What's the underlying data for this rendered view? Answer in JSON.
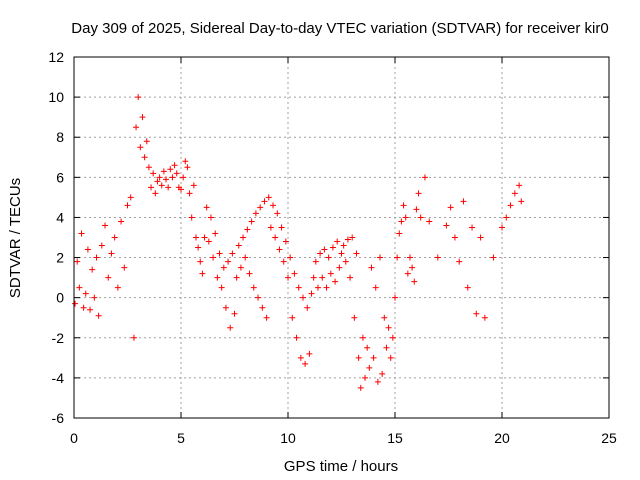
{
  "chart_data": {
    "type": "scatter",
    "title": "Day 309 of 2025, Sidereal Day-to-day VTEC variation (SDTVAR) for receiver kir0",
    "xlabel": "GPS time / hours",
    "ylabel": "SDTVAR / TECUs",
    "xlim": [
      0,
      25
    ],
    "ylim": [
      -6,
      12
    ],
    "xticks": [
      "0",
      "5",
      "10",
      "15",
      "20",
      "25"
    ],
    "yticks": [
      "-6",
      "-4",
      "-2",
      "0",
      "2",
      "4",
      "6",
      "8",
      "10",
      "12"
    ],
    "grid": true,
    "marker": "+",
    "color": "#ff0000",
    "series": [
      {
        "name": "SDTVAR",
        "x": [
          0.05,
          0.15,
          0.25,
          0.35,
          0.45,
          0.55,
          0.65,
          0.75,
          0.85,
          0.95,
          1.05,
          1.15,
          1.3,
          1.45,
          1.6,
          1.75,
          1.9,
          2.05,
          2.2,
          2.35,
          2.5,
          2.65,
          2.8,
          2.9,
          3.0,
          3.1,
          3.2,
          3.3,
          3.4,
          3.5,
          3.6,
          3.7,
          3.8,
          3.9,
          4.0,
          4.1,
          4.2,
          4.3,
          4.4,
          4.5,
          4.6,
          4.7,
          4.8,
          4.9,
          5.0,
          5.1,
          5.2,
          5.3,
          5.4,
          5.5,
          5.6,
          5.7,
          5.8,
          5.9,
          6.0,
          6.1,
          6.2,
          6.3,
          6.4,
          6.5,
          6.6,
          6.7,
          6.8,
          6.9,
          7.0,
          7.1,
          7.2,
          7.3,
          7.4,
          7.5,
          7.6,
          7.7,
          7.8,
          7.9,
          8.0,
          8.1,
          8.2,
          8.3,
          8.4,
          8.5,
          8.6,
          8.7,
          8.8,
          8.9,
          9.0,
          9.1,
          9.2,
          9.3,
          9.4,
          9.5,
          9.6,
          9.7,
          9.8,
          9.9,
          10.0,
          10.1,
          10.2,
          10.3,
          10.4,
          10.5,
          10.6,
          10.7,
          10.8,
          10.9,
          11.0,
          11.1,
          11.2,
          11.3,
          11.4,
          11.5,
          11.6,
          11.7,
          11.8,
          11.9,
          12.0,
          12.1,
          12.2,
          12.3,
          12.4,
          12.5,
          12.6,
          12.7,
          12.8,
          12.9,
          13.0,
          13.1,
          13.2,
          13.3,
          13.4,
          13.5,
          13.6,
          13.7,
          13.8,
          13.9,
          14.0,
          14.1,
          14.2,
          14.3,
          14.4,
          14.5,
          14.6,
          14.7,
          14.8,
          14.9,
          15.0,
          15.1,
          15.2,
          15.3,
          15.4,
          15.5,
          15.6,
          15.7,
          15.8,
          15.9,
          16.0,
          16.1,
          16.2,
          16.4,
          16.6,
          17.0,
          17.4,
          17.6,
          17.8,
          18.0,
          18.2,
          18.4,
          18.6,
          18.8,
          19.0,
          19.2,
          19.6,
          20.0,
          20.2,
          20.4,
          20.6,
          20.8,
          20.9
        ],
        "y": [
          -0.3,
          1.8,
          0.5,
          3.2,
          -0.5,
          0.2,
          2.4,
          -0.6,
          1.4,
          0.0,
          2.0,
          -0.9,
          2.6,
          3.6,
          1.0,
          2.2,
          3.0,
          0.5,
          3.8,
          1.5,
          4.6,
          5.0,
          -2.0,
          8.5,
          10.0,
          7.5,
          9.0,
          7.0,
          7.8,
          6.5,
          5.5,
          6.2,
          5.2,
          5.8,
          6.0,
          5.6,
          6.3,
          5.9,
          5.5,
          6.4,
          6.0,
          6.6,
          6.2,
          5.5,
          5.4,
          6.0,
          6.8,
          6.5,
          5.2,
          4.0,
          5.6,
          3.0,
          2.5,
          1.8,
          1.2,
          3.0,
          4.5,
          2.8,
          4.0,
          2.0,
          3.2,
          1.0,
          2.2,
          0.5,
          1.5,
          -0.5,
          1.8,
          -1.5,
          2.2,
          -0.8,
          1.0,
          2.6,
          1.5,
          3.0,
          2.0,
          3.4,
          1.2,
          3.8,
          0.5,
          4.2,
          0.0,
          4.5,
          -0.5,
          4.8,
          -1.0,
          5.0,
          3.5,
          4.6,
          3.0,
          4.2,
          2.4,
          3.5,
          1.8,
          2.8,
          1.0,
          2.0,
          -1.0,
          1.2,
          -2.0,
          0.5,
          -3.0,
          0.0,
          -3.3,
          -0.5,
          -2.8,
          0.2,
          1.0,
          1.8,
          0.5,
          2.2,
          1.0,
          2.4,
          0.5,
          2.0,
          1.2,
          2.5,
          0.8,
          2.8,
          1.5,
          2.2,
          2.6,
          1.8,
          2.9,
          1.0,
          3.0,
          -1.0,
          2.2,
          -3.0,
          -4.5,
          -2.0,
          -4.0,
          -2.5,
          -3.5,
          1.5,
          -3.0,
          0.5,
          -4.2,
          2.0,
          -3.8,
          -1.0,
          -2.5,
          -1.5,
          -3.0,
          -2.0,
          0.0,
          2.0,
          3.2,
          3.8,
          4.6,
          4.0,
          1.2,
          2.0,
          1.5,
          0.8,
          4.4,
          5.2,
          4.0,
          6.0,
          3.8,
          2.0,
          3.6,
          4.5,
          3.0,
          1.8,
          4.8,
          0.5,
          3.5,
          -0.8,
          3.0,
          -1.0,
          2.0,
          3.5,
          4.0,
          4.6,
          5.2,
          5.6,
          4.8
        ]
      }
    ]
  }
}
